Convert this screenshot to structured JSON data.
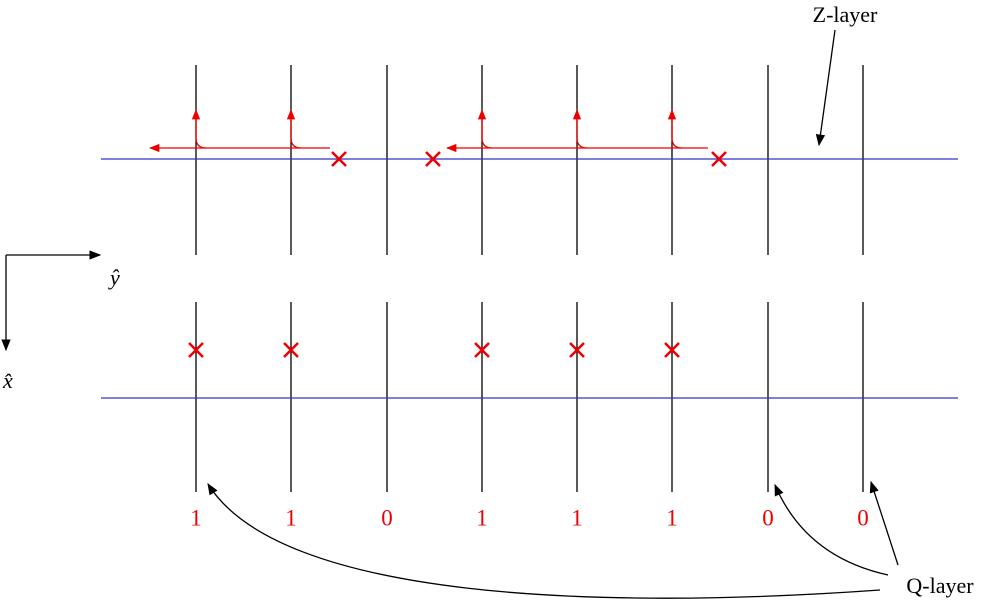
{
  "labels": {
    "z_layer": "Z-layer",
    "q_layer": "Q-layer",
    "y_axis": "ŷ",
    "x_axis": "x̂"
  },
  "bits": [
    1,
    1,
    0,
    1,
    1,
    1,
    0,
    0
  ]
}
